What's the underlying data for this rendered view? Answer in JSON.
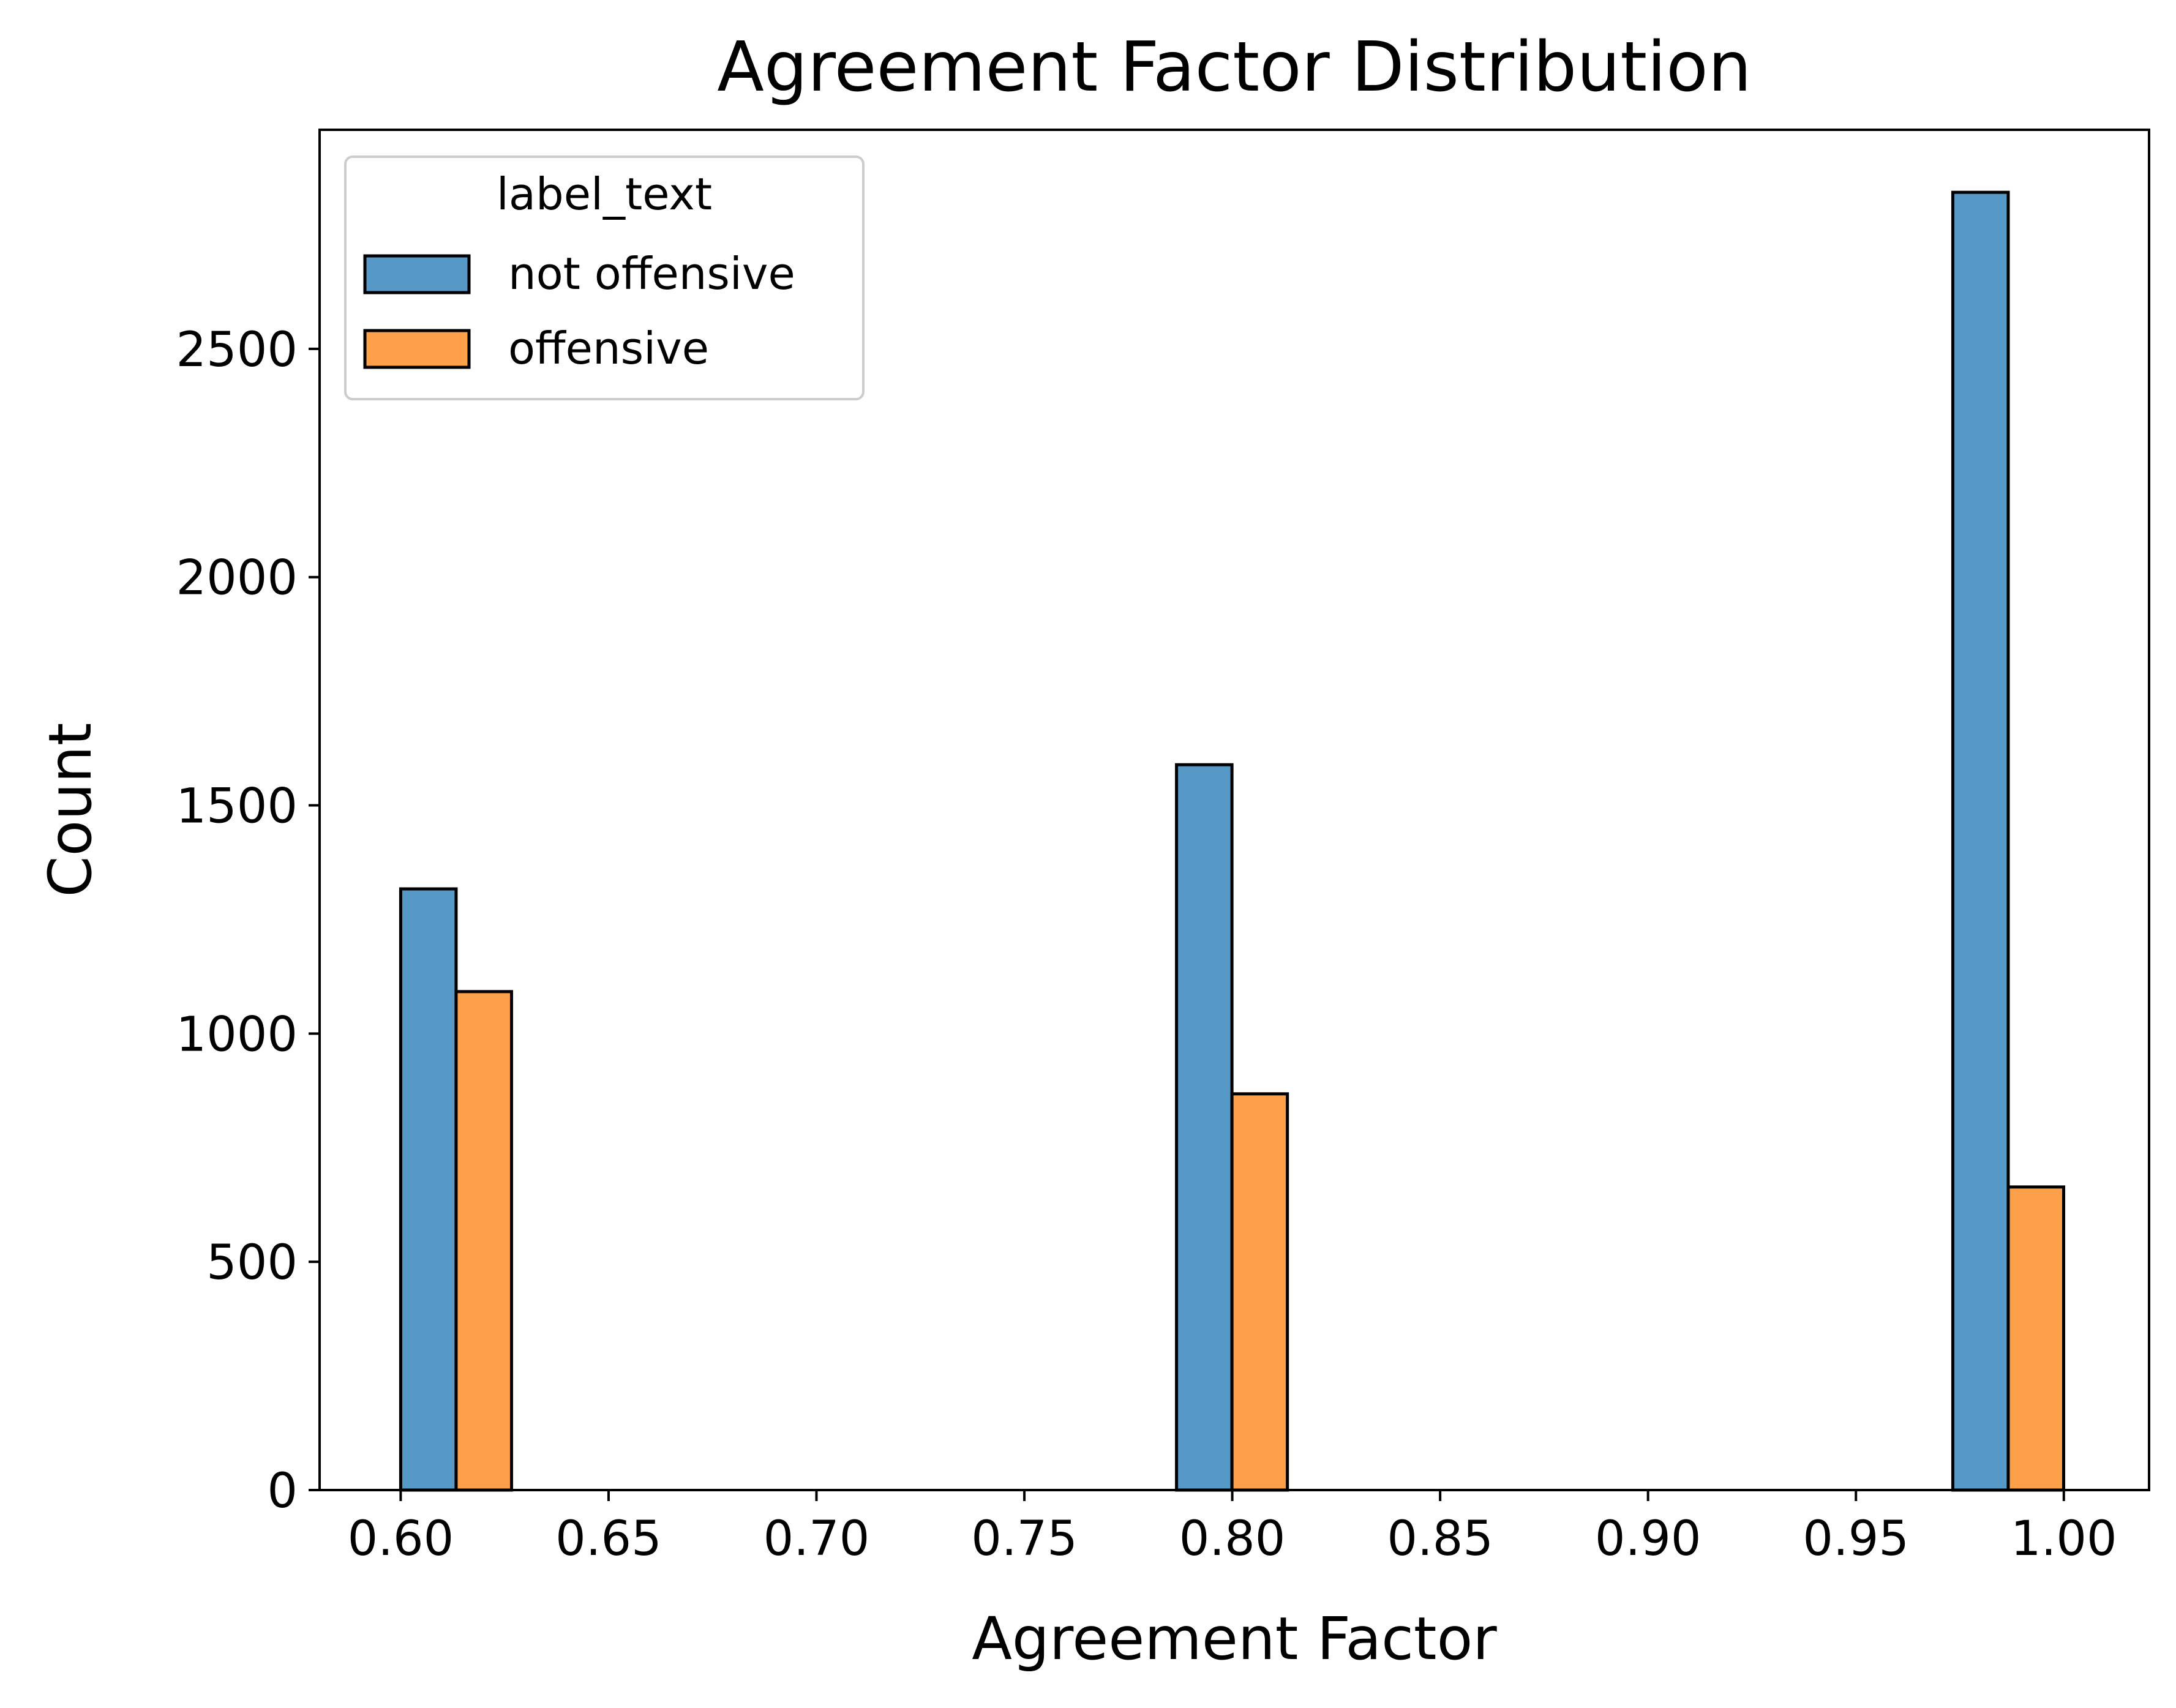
{
  "chart_data": {
    "type": "bar",
    "title": "Agreement Factor Distribution",
    "xlabel": "Agreement Factor",
    "ylabel": "Count",
    "xlim": [
      0.5805,
      1.0205
    ],
    "ylim": [
      0,
      2980
    ],
    "x_ticks": [
      "0.60",
      "0.65",
      "0.70",
      "0.75",
      "0.80",
      "0.85",
      "0.90",
      "0.95",
      "1.00"
    ],
    "x_tick_values": [
      0.6,
      0.65,
      0.7,
      0.75,
      0.8,
      0.85,
      0.9,
      0.95,
      1.0
    ],
    "y_ticks": [
      "0",
      "500",
      "1000",
      "1500",
      "2000",
      "2500"
    ],
    "y_tick_values": [
      0,
      500,
      1000,
      1500,
      2000,
      2500
    ],
    "bin_width": 0.02666,
    "bin_starts": [
      0.6,
      0.7866,
      0.9733
    ],
    "grid": false,
    "legend": {
      "title": "label_text",
      "placement": "top-left"
    },
    "series": [
      {
        "name": "not offensive",
        "color": "#5799c6",
        "values": [
          1317,
          1589,
          2843
        ]
      },
      {
        "name": "offensive",
        "color": "#fea049",
        "values": [
          1092,
          868,
          664
        ]
      }
    ]
  }
}
